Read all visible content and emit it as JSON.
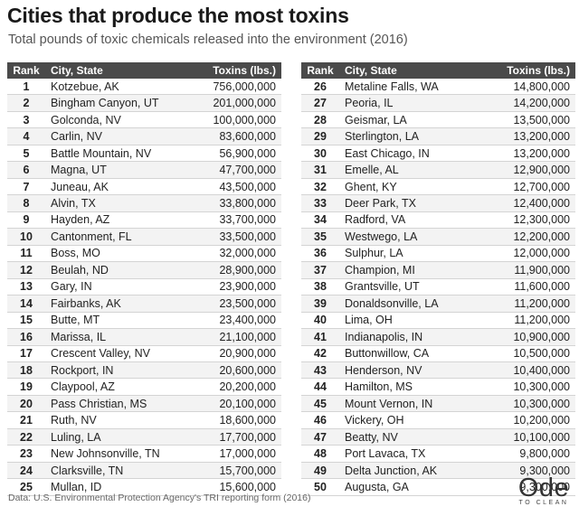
{
  "header": {
    "title": "Cities that produce the most toxins",
    "subtitle": "Total pounds of toxic chemicals released into the environment (2016)"
  },
  "columns": {
    "rank": "Rank",
    "city": "City, State",
    "toxins": "Toxins (lbs.)"
  },
  "footer": {
    "source": "Data: U.S. Environmental Protection Agency's TRI reporting form (2016)",
    "logo_word": "Ode",
    "logo_tagline": "TO CLEAN"
  },
  "colors": {
    "header_bg": "#4a4a4a",
    "stripe": "#f3f3f3",
    "text": "#222222"
  },
  "chart_data": {
    "type": "table",
    "title": "Cities that produce the most toxins",
    "subtitle": "Total pounds of toxic chemicals released into the environment (2016)",
    "columns": [
      "Rank",
      "City, State",
      "Toxins (lbs.)"
    ],
    "rows": [
      {
        "rank": "1",
        "city": "Kotzebue, AK",
        "toxins": "756,000,000"
      },
      {
        "rank": "2",
        "city": "Bingham Canyon, UT",
        "toxins": "201,000,000"
      },
      {
        "rank": "3",
        "city": "Golconda, NV",
        "toxins": "100,000,000"
      },
      {
        "rank": "4",
        "city": "Carlin, NV",
        "toxins": "83,600,000"
      },
      {
        "rank": "5",
        "city": "Battle Mountain, NV",
        "toxins": "56,900,000"
      },
      {
        "rank": "6",
        "city": "Magna, UT",
        "toxins": "47,700,000"
      },
      {
        "rank": "7",
        "city": "Juneau, AK",
        "toxins": "43,500,000"
      },
      {
        "rank": "8",
        "city": "Alvin, TX",
        "toxins": "33,800,000"
      },
      {
        "rank": "9",
        "city": "Hayden, AZ",
        "toxins": "33,700,000"
      },
      {
        "rank": "10",
        "city": "Cantonment, FL",
        "toxins": "33,500,000"
      },
      {
        "rank": "11",
        "city": "Boss, MO",
        "toxins": "32,000,000"
      },
      {
        "rank": "12",
        "city": "Beulah, ND",
        "toxins": "28,900,000"
      },
      {
        "rank": "13",
        "city": "Gary, IN",
        "toxins": "23,900,000"
      },
      {
        "rank": "14",
        "city": "Fairbanks, AK",
        "toxins": "23,500,000"
      },
      {
        "rank": "15",
        "city": "Butte, MT",
        "toxins": "23,400,000"
      },
      {
        "rank": "16",
        "city": "Marissa, IL",
        "toxins": "21,100,000"
      },
      {
        "rank": "17",
        "city": "Crescent Valley, NV",
        "toxins": "20,900,000"
      },
      {
        "rank": "18",
        "city": "Rockport, IN",
        "toxins": "20,600,000"
      },
      {
        "rank": "19",
        "city": "Claypool, AZ",
        "toxins": "20,200,000"
      },
      {
        "rank": "20",
        "city": "Pass Christian, MS",
        "toxins": "20,100,000"
      },
      {
        "rank": "21",
        "city": "Ruth, NV",
        "toxins": "18,600,000"
      },
      {
        "rank": "22",
        "city": "Luling, LA",
        "toxins": "17,700,000"
      },
      {
        "rank": "23",
        "city": "New Johnsonville, TN",
        "toxins": "17,000,000"
      },
      {
        "rank": "24",
        "city": "Clarksville, TN",
        "toxins": "15,700,000"
      },
      {
        "rank": "25",
        "city": "Mullan, ID",
        "toxins": "15,600,000"
      },
      {
        "rank": "26",
        "city": "Metaline Falls, WA",
        "toxins": "14,800,000"
      },
      {
        "rank": "27",
        "city": "Peoria, IL",
        "toxins": "14,200,000"
      },
      {
        "rank": "28",
        "city": "Geismar, LA",
        "toxins": "13,500,000"
      },
      {
        "rank": "29",
        "city": "Sterlington, LA",
        "toxins": "13,200,000"
      },
      {
        "rank": "30",
        "city": "East Chicago, IN",
        "toxins": "13,200,000"
      },
      {
        "rank": "31",
        "city": "Emelle, AL",
        "toxins": "12,900,000"
      },
      {
        "rank": "32",
        "city": "Ghent, KY",
        "toxins": "12,700,000"
      },
      {
        "rank": "33",
        "city": "Deer Park, TX",
        "toxins": "12,400,000"
      },
      {
        "rank": "34",
        "city": "Radford, VA",
        "toxins": "12,300,000"
      },
      {
        "rank": "35",
        "city": "Westwego, LA",
        "toxins": "12,200,000"
      },
      {
        "rank": "36",
        "city": "Sulphur, LA",
        "toxins": "12,000,000"
      },
      {
        "rank": "37",
        "city": "Champion, MI",
        "toxins": "11,900,000"
      },
      {
        "rank": "38",
        "city": "Grantsville, UT",
        "toxins": "11,600,000"
      },
      {
        "rank": "39",
        "city": "Donaldsonville, LA",
        "toxins": "11,200,000"
      },
      {
        "rank": "40",
        "city": "Lima, OH",
        "toxins": "11,200,000"
      },
      {
        "rank": "41",
        "city": "Indianapolis, IN",
        "toxins": "10,900,000"
      },
      {
        "rank": "42",
        "city": "Buttonwillow, CA",
        "toxins": "10,500,000"
      },
      {
        "rank": "43",
        "city": "Henderson, NV",
        "toxins": "10,400,000"
      },
      {
        "rank": "44",
        "city": "Hamilton, MS",
        "toxins": "10,300,000"
      },
      {
        "rank": "45",
        "city": "Mount Vernon, IN",
        "toxins": "10,300,000"
      },
      {
        "rank": "46",
        "city": "Vickery, OH",
        "toxins": "10,200,000"
      },
      {
        "rank": "47",
        "city": "Beatty, NV",
        "toxins": "10,100,000"
      },
      {
        "rank": "48",
        "city": "Port Lavaca, TX",
        "toxins": "9,800,000"
      },
      {
        "rank": "49",
        "city": "Delta Junction, AK",
        "toxins": "9,300,000"
      },
      {
        "rank": "50",
        "city": "Augusta, GA",
        "toxins": "9,300,000"
      }
    ]
  }
}
